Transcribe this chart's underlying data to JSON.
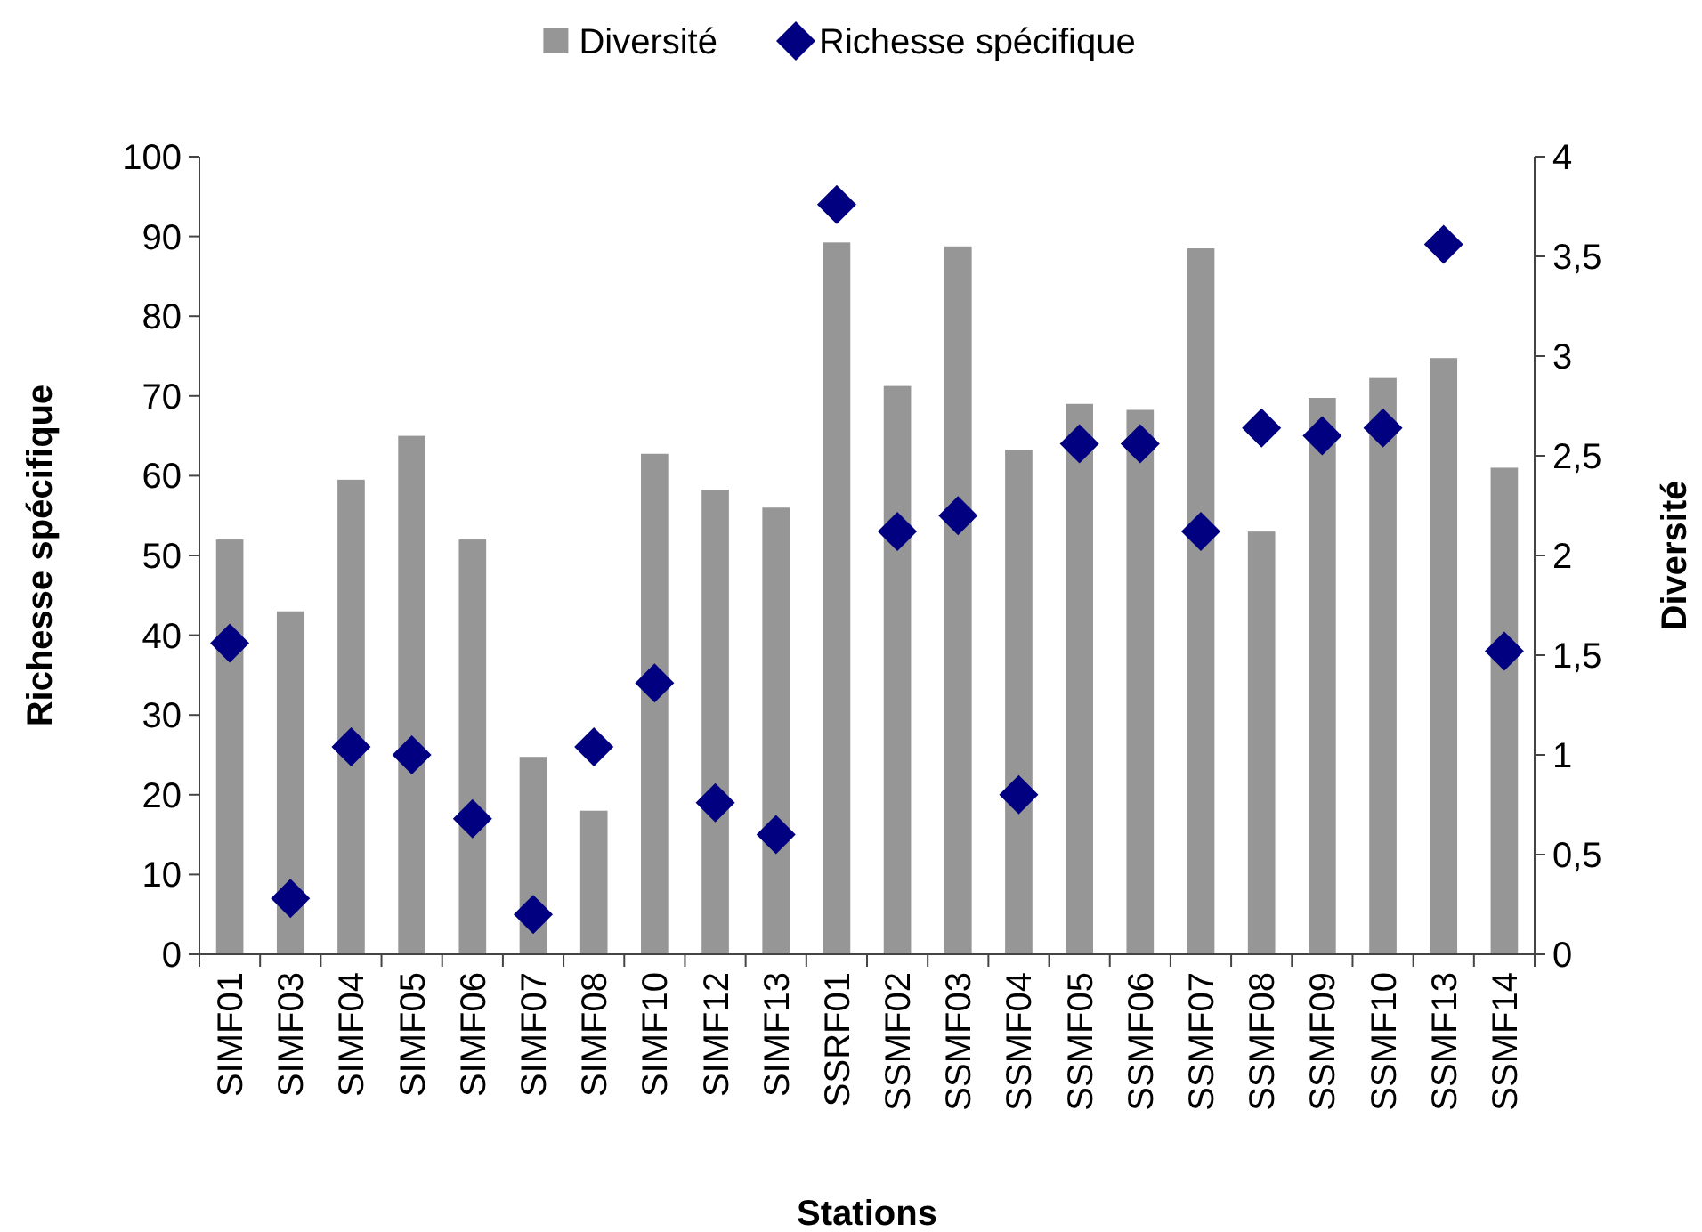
{
  "chart_data": {
    "type": "bar",
    "xlabel": "Stations",
    "ylabel": "Richesse spécifique",
    "y2label": "Diversité",
    "categories": [
      "SIMF01",
      "SIMF03",
      "SIMF04",
      "SIMF05",
      "SIMF06",
      "SIMF07",
      "SIMF08",
      "SIMF10",
      "SIMF12",
      "SIMF13",
      "SSRF01",
      "SSMF02",
      "SSMF03",
      "SSMF04",
      "SSMF05",
      "SSMF06",
      "SSMF07",
      "SSMF08",
      "SSMF09",
      "SSMF10",
      "SSMF13",
      "SSMF14"
    ],
    "series": [
      {
        "name": "Diversité",
        "axis": "y2",
        "color": "#969696",
        "values": [
          2.08,
          1.72,
          2.38,
          2.6,
          2.08,
          0.99,
          0.72,
          2.51,
          2.33,
          2.24,
          3.57,
          2.85,
          3.55,
          2.53,
          2.76,
          2.73,
          3.54,
          2.12,
          2.79,
          2.89,
          2.99,
          2.44
        ]
      },
      {
        "name": "Richesse spécifique",
        "type": "scatter",
        "marker": "diamond",
        "color": "#000080",
        "values": [
          39,
          7,
          26,
          25,
          17,
          5,
          26,
          34,
          19,
          15,
          94,
          53,
          55,
          20,
          64,
          64,
          53,
          66,
          65,
          66,
          89,
          38
        ]
      }
    ],
    "ylim": [
      0,
      100
    ],
    "yticks": [
      0,
      10,
      20,
      30,
      40,
      50,
      60,
      70,
      80,
      90,
      100
    ],
    "y2lim": [
      0,
      4
    ],
    "y2ticks": [
      0,
      {
        "value": 0.5,
        "label": "0,5"
      },
      1,
      {
        "value": 1.5,
        "label": "1,5"
      },
      2,
      {
        "value": 2.5,
        "label": "2,5"
      },
      3,
      {
        "value": 3.5,
        "label": "3,5"
      },
      4
    ],
    "legend": "top",
    "grid": false
  }
}
